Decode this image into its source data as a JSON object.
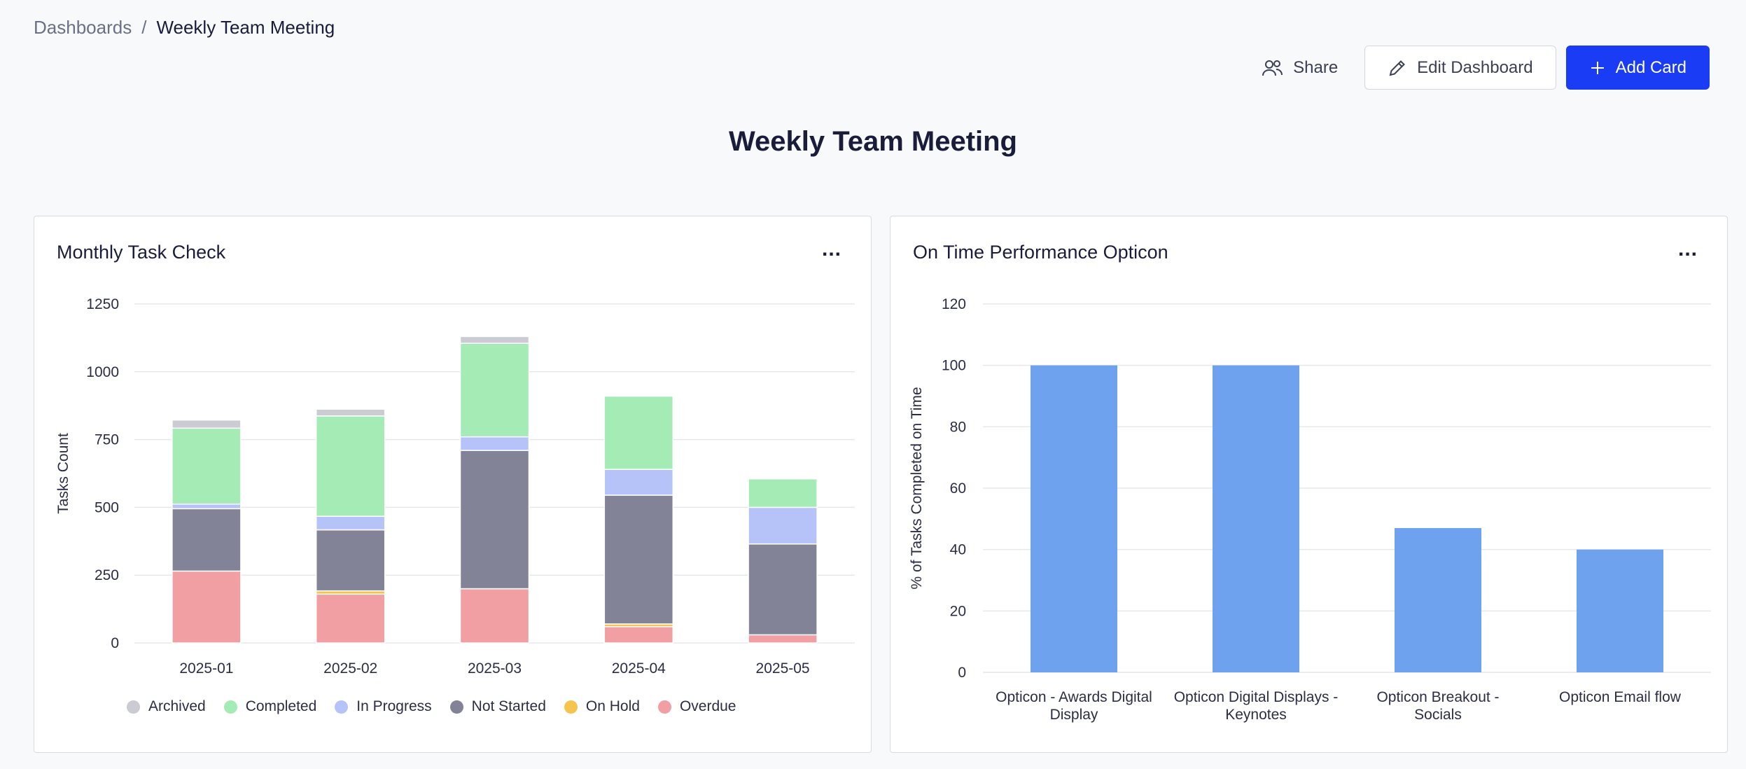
{
  "breadcrumb": {
    "parent": "Dashboards",
    "separator": "/",
    "current": "Weekly Team Meeting"
  },
  "toolbar": {
    "share_label": "Share",
    "edit_label": "Edit Dashboard",
    "add_label": "Add Card",
    "share_icon": "users-icon",
    "edit_icon": "pencil-icon",
    "add_icon": "plus-icon"
  },
  "page_title": "Weekly Team Meeting",
  "cards": {
    "left": {
      "title": "Monthly Task Check",
      "menu": "..."
    },
    "right": {
      "title": "On Time Performance Opticon",
      "menu": "..."
    }
  },
  "colors": {
    "accent": "#1a3cf5",
    "Archived": "#cacbd3",
    "Completed": "#a4ebb6",
    "In Progress": "#b6c3f8",
    "Not Started": "#838398",
    "On Hold": "#f4c44e",
    "Overdue": "#f19fa3",
    "bar_blue": "#6ea2ef"
  },
  "chart_data": [
    {
      "type": "bar",
      "stacked": true,
      "title": "Monthly Task Check",
      "ylabel": "Tasks Count",
      "xlabel": "",
      "ylim": [
        0,
        1250
      ],
      "yticks": [
        0,
        250,
        500,
        750,
        1000,
        1250
      ],
      "grid": true,
      "legend": "bottom",
      "categories": [
        "2025-01",
        "2025-02",
        "2025-03",
        "2025-04",
        "2025-05"
      ],
      "series": [
        {
          "name": "Overdue",
          "values": [
            265,
            180,
            200,
            60,
            30
          ]
        },
        {
          "name": "On Hold",
          "values": [
            0,
            12,
            0,
            10,
            0
          ]
        },
        {
          "name": "Not Started",
          "values": [
            230,
            225,
            510,
            475,
            335
          ]
        },
        {
          "name": "In Progress",
          "values": [
            17,
            50,
            50,
            95,
            135
          ]
        },
        {
          "name": "Completed",
          "values": [
            280,
            370,
            345,
            270,
            105
          ]
        },
        {
          "name": "Archived",
          "values": [
            30,
            25,
            25,
            0,
            0
          ]
        }
      ]
    },
    {
      "type": "bar",
      "title": "On Time Performance Opticon",
      "ylabel": "% of Tasks Completed on Time",
      "xlabel": "",
      "ylim": [
        0,
        120
      ],
      "yticks": [
        0,
        20,
        40,
        60,
        80,
        100,
        120
      ],
      "grid": true,
      "categories": [
        [
          "Opticon - Awards Digital",
          "Display"
        ],
        [
          "Opticon Digital Displays -",
          "Keynotes"
        ],
        [
          "Opticon Breakout -",
          "Socials"
        ],
        [
          "Opticon Email flow"
        ]
      ],
      "values": [
        100,
        100,
        47,
        40
      ]
    }
  ]
}
